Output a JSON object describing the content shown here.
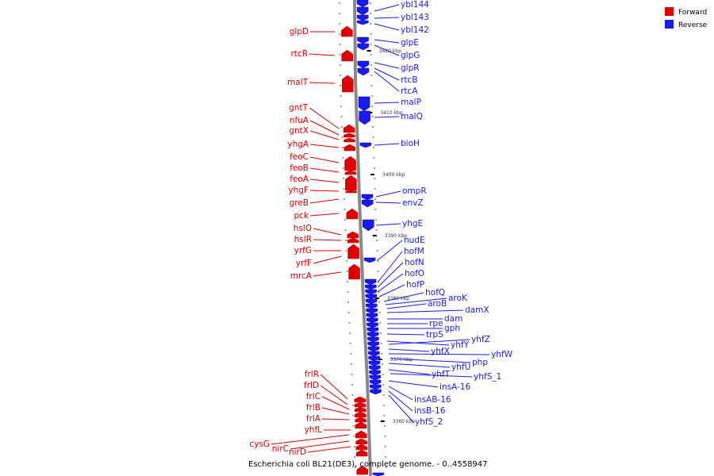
{
  "caption": "Escherichia coli BL21(DE3), complete genome. - 0..4558947",
  "colors": {
    "forward": "#e00000",
    "reverse": "#1a1aee",
    "backbone": "#888888"
  },
  "legend": [
    {
      "label": "Forward",
      "color": "#e00000"
    },
    {
      "label": "Reverse",
      "color": "#1a1aee"
    }
  ],
  "ticks": [
    "3420 kbp",
    "3410 kbp",
    "3400 kbp",
    "3390 kbp",
    "3380 kbp",
    "3370 kbp",
    "3360 kbp"
  ],
  "forward_genes": [
    "glpD",
    "rtcR",
    "malT",
    "gntT",
    "nfuA",
    "gntX",
    "yhgA",
    "feoC",
    "feoB",
    "feoA",
    "yhgF",
    "greB",
    "pck",
    "hslO",
    "hslR",
    "yrfG",
    "yrfF",
    "mrcA",
    "frlR",
    "frlD",
    "frlC",
    "frlB",
    "frlA",
    "yhfL",
    "cysG",
    "nirC",
    "nirD"
  ],
  "reverse_genes": [
    "ybl144",
    "ybl143",
    "ybl142",
    "glpE",
    "glpG",
    "glpR",
    "rtcB",
    "rtcA",
    "malP",
    "malQ",
    "bioH",
    "ompR",
    "envZ",
    "yhgE",
    "nudE",
    "hofM",
    "hofN",
    "hofO",
    "hofP",
    "hofQ",
    "aroK",
    "aroB",
    "damX",
    "dam",
    "rpe",
    "gph",
    "trpS",
    "yhfY",
    "yhfZ",
    "yhfX",
    "yhfW",
    "php",
    "yhfU",
    "yhfT",
    "yhfS_1",
    "insA-16",
    "insAB-16",
    "insB-16",
    "yhfS_2"
  ]
}
